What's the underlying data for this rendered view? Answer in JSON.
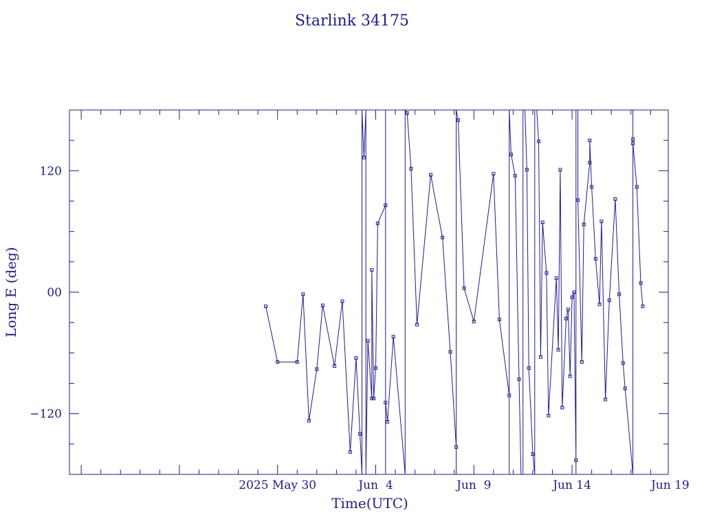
{
  "chart_data": {
    "type": "line",
    "title": "Starlink 34175",
    "xlabel": "Time(UTC)",
    "ylabel": "Long E (deg)",
    "xlim": [
      -10.6,
      19.9
    ],
    "ylim": [
      -180,
      180
    ],
    "x_ticks": [
      {
        "value": 0,
        "label": "2025 May 30"
      },
      {
        "value": 5,
        "label": "Jun  4"
      },
      {
        "value": 10,
        "label": "Jun  9"
      },
      {
        "value": 15,
        "label": "Jun 14"
      },
      {
        "value": 20,
        "label": "Jun 19"
      }
    ],
    "y_ticks": [
      {
        "value": 120,
        "label": "120"
      },
      {
        "value": 0,
        "label": "00"
      },
      {
        "value": -120,
        "label": "−120"
      }
    ],
    "color": "#1a1a99",
    "grid": false,
    "series": [
      {
        "points": [
          [
            -0.6,
            -14
          ],
          [
            0.0,
            -69
          ],
          [
            1.0,
            -69
          ],
          [
            1.3,
            -2
          ],
          [
            1.6,
            -127
          ],
          [
            2.0,
            -76
          ],
          [
            2.3,
            -13
          ],
          [
            2.9,
            -73
          ],
          [
            3.3,
            -9
          ],
          [
            3.7,
            -158
          ],
          [
            4.0,
            -65
          ],
          [
            4.2,
            -140
          ],
          [
            4.3,
            -180
          ],
          [
            4.3,
            180
          ],
          [
            4.4,
            133
          ],
          [
            4.5,
            180
          ],
          [
            4.5,
            -180
          ],
          [
            4.6,
            -48
          ],
          [
            4.8,
            -105
          ],
          [
            4.8,
            22
          ],
          [
            4.9,
            -105
          ],
          [
            5.0,
            -75
          ],
          [
            5.1,
            68
          ],
          [
            5.5,
            86
          ],
          [
            5.5,
            180
          ],
          [
            5.5,
            -180
          ],
          [
            5.5,
            -109
          ],
          [
            5.6,
            -128
          ],
          [
            5.9,
            -44
          ],
          [
            6.5,
            -180
          ],
          [
            6.5,
            180
          ],
          [
            6.6,
            177
          ],
          [
            6.8,
            122
          ],
          [
            7.1,
            -32
          ],
          [
            7.8,
            116
          ],
          [
            8.4,
            54
          ],
          [
            8.8,
            -59
          ],
          [
            9.1,
            -153
          ],
          [
            9.1,
            -180
          ],
          [
            9.1,
            180
          ],
          [
            9.2,
            170
          ],
          [
            9.5,
            4
          ],
          [
            10.0,
            -29
          ],
          [
            11.0,
            117
          ],
          [
            11.3,
            -27
          ],
          [
            11.8,
            -102
          ],
          [
            11.8,
            -180
          ],
          [
            11.8,
            180
          ],
          [
            11.9,
            136
          ],
          [
            12.1,
            115
          ],
          [
            12.3,
            -86
          ],
          [
            12.4,
            -180
          ],
          [
            12.5,
            -180
          ],
          [
            12.5,
            180
          ],
          [
            12.6,
            180
          ],
          [
            12.7,
            121
          ],
          [
            12.8,
            -75
          ],
          [
            13.0,
            -160
          ],
          [
            13.1,
            -180
          ],
          [
            13.1,
            180
          ],
          [
            13.2,
            180
          ],
          [
            13.3,
            149
          ],
          [
            13.4,
            -64
          ],
          [
            13.5,
            69
          ],
          [
            13.7,
            19
          ],
          [
            13.8,
            -122
          ],
          [
            14.2,
            14
          ],
          [
            14.3,
            -57
          ],
          [
            14.4,
            121
          ],
          [
            14.5,
            -114
          ],
          [
            14.7,
            -26
          ],
          [
            14.8,
            -17
          ],
          [
            14.9,
            -83
          ],
          [
            15.0,
            -5
          ],
          [
            15.1,
            0
          ],
          [
            15.2,
            -166
          ],
          [
            15.2,
            -180
          ],
          [
            15.2,
            180
          ],
          [
            15.3,
            180
          ],
          [
            15.3,
            91
          ],
          [
            15.5,
            -69
          ],
          [
            15.6,
            67
          ],
          [
            15.9,
            128
          ],
          [
            15.9,
            150
          ],
          [
            16.0,
            104
          ],
          [
            16.2,
            33
          ],
          [
            16.4,
            -12
          ],
          [
            16.5,
            70
          ],
          [
            16.7,
            -106
          ],
          [
            16.9,
            -8
          ],
          [
            17.2,
            92
          ],
          [
            17.4,
            -2
          ],
          [
            17.6,
            -70
          ],
          [
            17.7,
            -95
          ],
          [
            18.1,
            -180
          ],
          [
            18.1,
            180
          ],
          [
            18.1,
            151
          ],
          [
            18.1,
            147
          ],
          [
            18.3,
            104
          ],
          [
            18.5,
            9
          ],
          [
            18.6,
            -14
          ]
        ]
      }
    ]
  }
}
